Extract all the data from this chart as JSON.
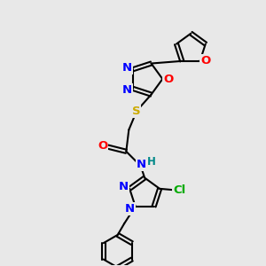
{
  "bg_color": "#e8e8e8",
  "bond_color": "#000000",
  "bond_width": 1.5,
  "atom_colors": {
    "N": "#0000ff",
    "O": "#ff0000",
    "S": "#ccaa00",
    "Cl": "#00aa00",
    "H": "#008888",
    "C": "#000000"
  },
  "font_size": 8.5
}
